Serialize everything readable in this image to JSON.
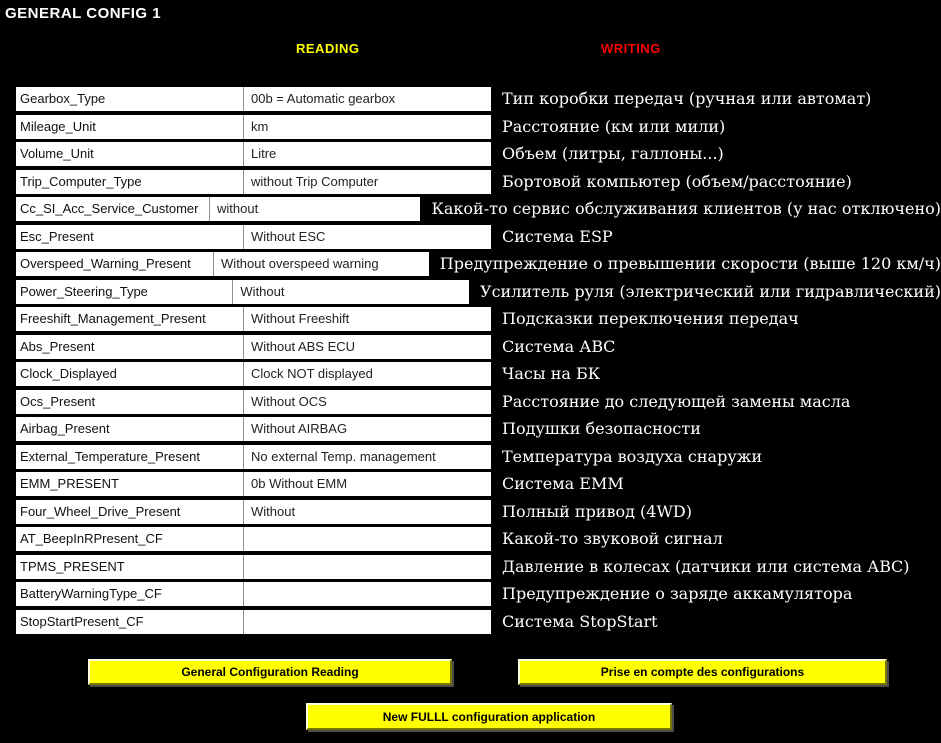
{
  "page": {
    "title": "GENERAL CONFIG 1",
    "background_color": "#000000"
  },
  "headers": {
    "reading": {
      "label": "READING",
      "color": "#ffff00"
    },
    "writing": {
      "label": "WRITING",
      "color": "#ff0000"
    }
  },
  "table": {
    "rows": [
      {
        "name": "Gearbox_Type",
        "value": "00b = Automatic gearbox",
        "description": "Тип коробки передач (ручная или автомат)"
      },
      {
        "name": "Mileage_Unit",
        "value": "km",
        "description": "Расстояние (км или мили)"
      },
      {
        "name": "Volume_Unit",
        "value": "Litre",
        "description": "Объем (литры, галлоны...)"
      },
      {
        "name": "Trip_Computer_Type",
        "value": "without Trip Computer",
        "description": "Бортовой компьютер (объем/расстояние)"
      },
      {
        "name": "Cc_SI_Acc_Service_Customer",
        "value": "without",
        "description": "Какой-то сервис обслуживания клиентов (у нас отключено)"
      },
      {
        "name": "Esc_Present",
        "value": "Without ESC",
        "description": "Система ESP"
      },
      {
        "name": "Overspeed_Warning_Present",
        "value": "Without overspeed warning",
        "description": "Предупреждение о превышении скорости (выше 120 км/ч)"
      },
      {
        "name": "Power_Steering_Type",
        "value": "Without",
        "description": "Усилитель руля (электрический или гидравлический)"
      },
      {
        "name": "Freeshift_Management_Present",
        "value": "Without Freeshift",
        "description": "Подсказки переключения передач"
      },
      {
        "name": "Abs_Present",
        "value": "Without ABS ECU",
        "description": "Система АВС"
      },
      {
        "name": "Clock_Displayed",
        "value": "Clock NOT displayed",
        "description": "Часы на БК"
      },
      {
        "name": "Ocs_Present",
        "value": "Without OCS",
        "description": "Расстояние до следующей замены масла"
      },
      {
        "name": "Airbag_Present",
        "value": "Without AIRBAG",
        "description": "Подушки безопасности"
      },
      {
        "name": "External_Temperature_Present",
        "value": "No external Temp. management",
        "description": "Температура воздуха снаружи"
      },
      {
        "name": "EMM_PRESENT",
        "value": "0b Without EMM",
        "description": "Система ЕММ"
      },
      {
        "name": "Four_Wheel_Drive_Present",
        "value": "Without",
        "description": "Полный привод (4WD)"
      },
      {
        "name": "AT_BeepInRPresent_CF",
        "value": "",
        "description": "Какой-то звуковой сигнал"
      },
      {
        "name": "TPMS_PRESENT",
        "value": "",
        "description": "Давление в колесах (датчики или система АВС)"
      },
      {
        "name": "BatteryWarningType_CF",
        "value": "",
        "description": "Предупреждение о заряде аккамулятора"
      },
      {
        "name": "StopStartPresent_CF",
        "value": "",
        "description": "Система StopStart"
      }
    ]
  },
  "buttons": [
    {
      "label": "General Configuration Reading",
      "color": "#ffff00"
    },
    {
      "label": "Prise en compte des configurations",
      "color": "#ffff00"
    },
    {
      "label": "New FULLL configuration application",
      "color": "#ffff00"
    }
  ]
}
